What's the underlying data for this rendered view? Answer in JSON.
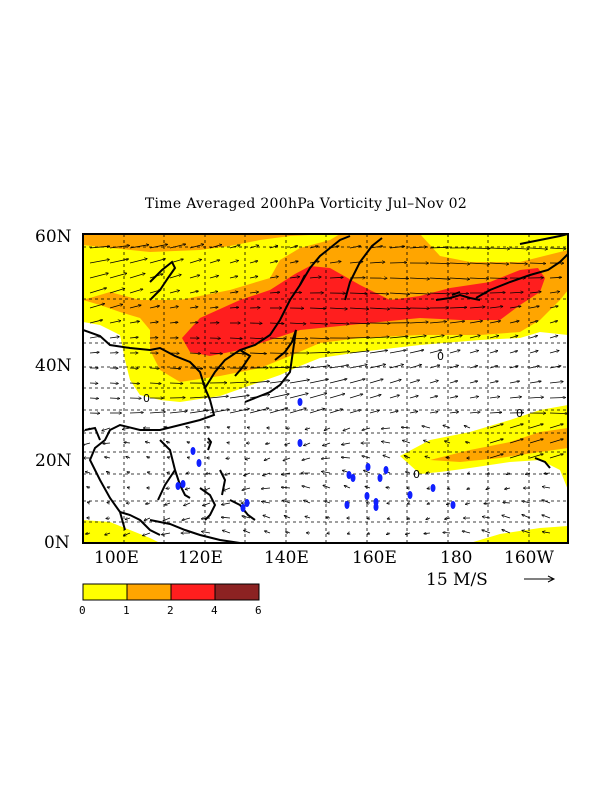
{
  "title": "Time Averaged 200hPa Vorticity Jul–Nov 02",
  "lat_labels": [
    "60N",
    "40N",
    "20N",
    "0N"
  ],
  "lon_labels": [
    "100E",
    "120E",
    "140E",
    "160E",
    "180",
    "160W"
  ],
  "reference_vector": "15 M/S",
  "contour_labels": [
    "0",
    "0",
    "0",
    "0"
  ],
  "colorbar": {
    "ticks": [
      "0",
      "1",
      "2",
      "4",
      "6"
    ],
    "colors": [
      "#ffff00",
      "#ffa500",
      "#ff1e1e",
      "#8c2222"
    ]
  },
  "colors": {
    "ocean_background": "#ffffff",
    "coastline": "#000000",
    "storm_symbols": "#1020ff"
  },
  "icons": [
    "wind-vector-arrow",
    "tropical-storm-icon"
  ]
}
